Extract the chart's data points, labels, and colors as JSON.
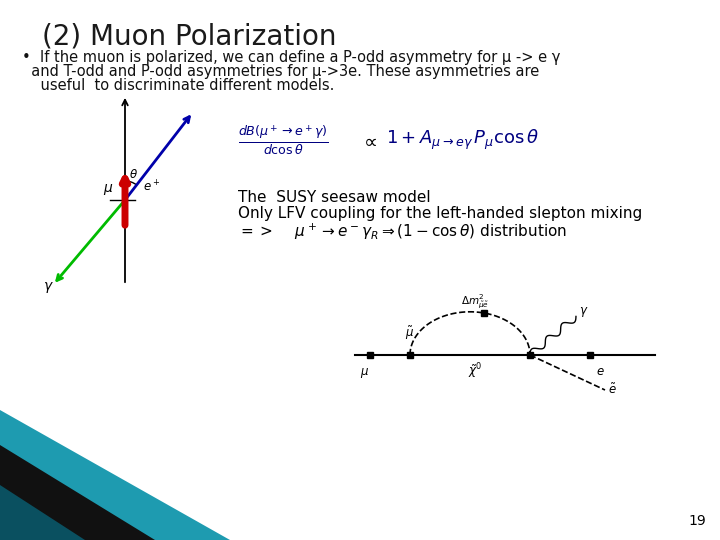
{
  "title": "(2) Muon Polarization",
  "title_fontsize": 20,
  "background_color": "#ffffff",
  "bullet_line1": "•  If the muon is polarized, we can define a P-odd asymmetry for μ -> e γ",
  "bullet_line2": "  and T-odd and P-odd asymmetries for μ->3e. These asymmetries are",
  "bullet_line3": "    useful  to discriminate different models.",
  "bullet_fontsize": 10.5,
  "susy_line1": "The  SUSY seesaw model",
  "susy_line2": "Only LFV coupling for the left-handed slepton mixing",
  "susy_fontsize": 11,
  "page_number": "19",
  "blue_color": "#0000aa",
  "green_color": "#00bb00",
  "red_color": "#cc0000",
  "black_color": "#000000",
  "teal_color": "#1a8fa0",
  "dark_color": "#111111"
}
